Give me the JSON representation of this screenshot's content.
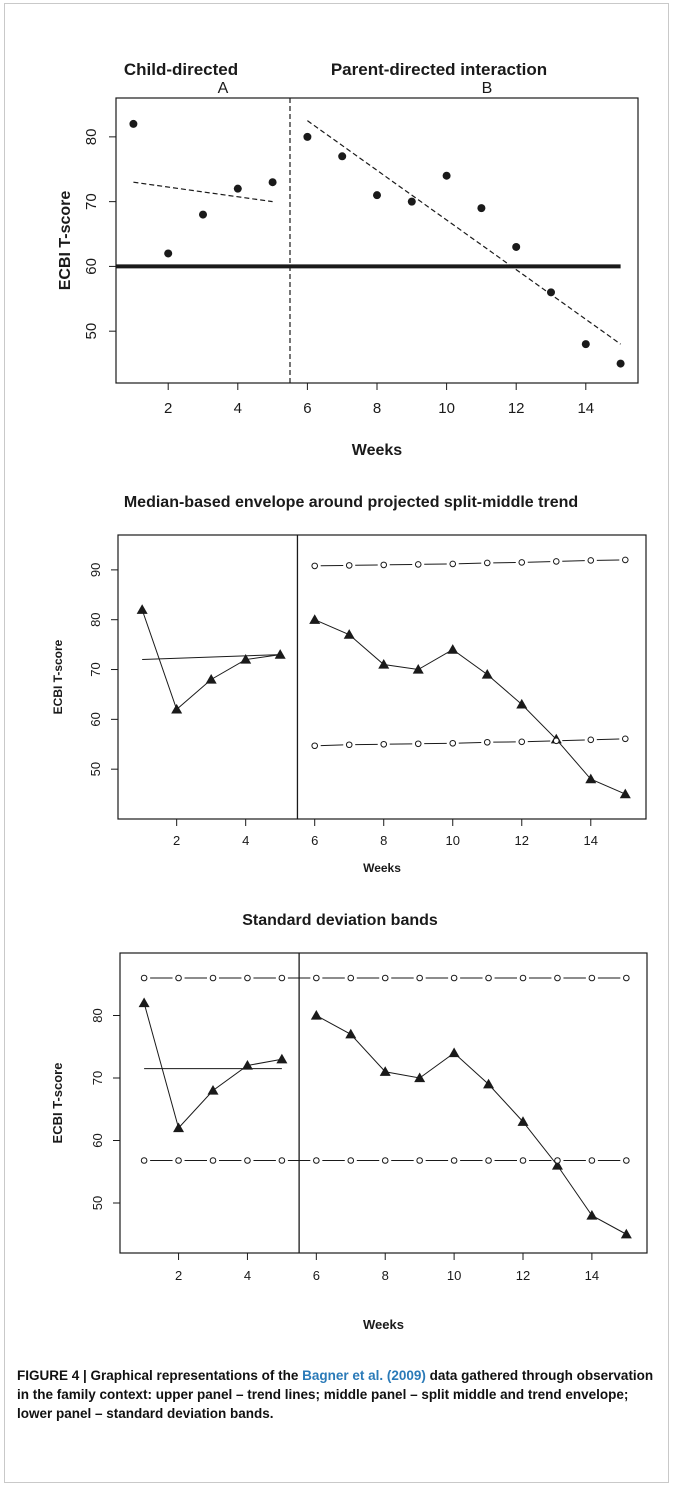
{
  "figure": {
    "caption_label": "FIGURE 4 | Graphical representations of the ",
    "caption_cite": "Bagner et al. (2009)",
    "caption_rest": " data gathered through observation in the family context: upper panel – trend lines; middle panel – split middle and trend envelope; lower panel – standard deviation bands."
  },
  "chart_data": [
    {
      "type": "scatter",
      "phase_titles": [
        "Child-directed",
        "Parent-directed interaction"
      ],
      "phase_labels": [
        "A",
        "B"
      ],
      "xlabel": "Weeks",
      "ylabel": "ECBI T-score",
      "xlim": [
        0.5,
        15.5
      ],
      "ylim": [
        42,
        86
      ],
      "xticks": [
        2,
        4,
        6,
        8,
        10,
        12,
        14
      ],
      "yticks": [
        50,
        60,
        70,
        80
      ],
      "phase_change": 5.5,
      "x": [
        1,
        2,
        3,
        4,
        5,
        6,
        7,
        8,
        9,
        10,
        11,
        12,
        13,
        14,
        15
      ],
      "y": [
        82,
        62,
        68,
        72,
        73,
        80,
        77,
        71,
        70,
        74,
        69,
        63,
        56,
        48,
        45
      ],
      "cutoff_line": 60,
      "trend_A": [
        [
          1,
          73
        ],
        [
          5,
          70
        ]
      ],
      "trend_B": [
        [
          6,
          82.5
        ],
        [
          15,
          48
        ]
      ]
    },
    {
      "type": "line",
      "title": "Median-based envelope around projected split-middle trend",
      "xlabel": "Weeks",
      "ylabel": "ECBI T-score",
      "xlim": [
        0.3,
        15.6
      ],
      "ylim": [
        40,
        97
      ],
      "xticks": [
        2,
        4,
        6,
        8,
        10,
        12,
        14
      ],
      "yticks": [
        50,
        60,
        70,
        80,
        90
      ],
      "phase_change": 5.5,
      "x": [
        1,
        2,
        3,
        4,
        5,
        6,
        7,
        8,
        9,
        10,
        11,
        12,
        13,
        14,
        15
      ],
      "y": [
        82,
        62,
        68,
        72,
        73,
        80,
        77,
        71,
        70,
        74,
        69,
        63,
        56,
        48,
        45
      ],
      "trend_A": [
        [
          1,
          72
        ],
        [
          5,
          73
        ]
      ],
      "envelope_x": [
        6,
        7,
        8,
        9,
        10,
        11,
        12,
        13,
        14,
        15
      ],
      "envelope_upper": [
        90.8,
        90.9,
        91.0,
        91.1,
        91.2,
        91.4,
        91.5,
        91.7,
        91.9,
        92.0
      ],
      "envelope_lower": [
        54.7,
        54.9,
        55.0,
        55.1,
        55.2,
        55.4,
        55.5,
        55.7,
        55.9,
        56.1
      ]
    },
    {
      "type": "line",
      "title": "Standard deviation bands",
      "xlabel": "Weeks",
      "ylabel": "ECBI T-score",
      "xlim": [
        0.3,
        15.6
      ],
      "ylim": [
        42,
        90
      ],
      "xticks": [
        2,
        4,
        6,
        8,
        10,
        12,
        14
      ],
      "yticks": [
        50,
        60,
        70,
        80
      ],
      "phase_change": 5.5,
      "x": [
        1,
        2,
        3,
        4,
        5,
        6,
        7,
        8,
        9,
        10,
        11,
        12,
        13,
        14,
        15
      ],
      "y": [
        82,
        62,
        68,
        72,
        73,
        80,
        77,
        71,
        70,
        74,
        69,
        63,
        56,
        48,
        45
      ],
      "trend_A": [
        [
          1,
          71.5
        ],
        [
          5,
          71.5
        ]
      ],
      "band_upper": 86,
      "band_lower": 56.8
    }
  ]
}
